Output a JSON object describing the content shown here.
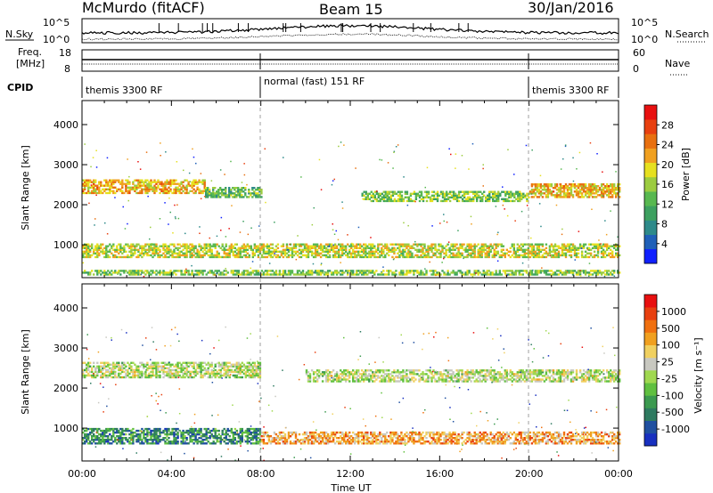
{
  "header": {
    "station": "McMurdo (fitACF)",
    "beam": "Beam 15",
    "date": "30/Jan/2016"
  },
  "labels": {
    "nsky": "N.Sky",
    "nsearch": "N.Search",
    "freq_line1": "Freq.",
    "freq_line2": "[MHz]",
    "nave": "Nave",
    "cpid": "CPID",
    "slant_range": "Slant Range [km]",
    "power": "Power [dB]",
    "velocity": "Velocity [m s⁻¹]",
    "time": "Time UT"
  },
  "noise_axis": {
    "top": "10^5",
    "bottom": "10^0"
  },
  "freq_axis": {
    "left_top": "18",
    "left_bottom": "8",
    "right_top": "60",
    "right_bottom": "0"
  },
  "cpid_segments": [
    {
      "label": "themis 3300 RF",
      "start": 0,
      "end": 8
    },
    {
      "label": "normal (fast) 151 RF",
      "start": 8,
      "end": 20
    },
    {
      "label": "themis 3300 RF",
      "start": 20,
      "end": 24
    }
  ],
  "chart_data": [
    {
      "type": "heatmap",
      "name": "power",
      "ylabel": "Slant Range [km]",
      "ylim": [
        180,
        4600
      ],
      "xlim": [
        0,
        24
      ],
      "yticks": [
        1000,
        2000,
        3000,
        4000
      ],
      "colorbar": {
        "label": "Power [dB]",
        "ticks": [
          "4",
          "8",
          "12",
          "16",
          "20",
          "24",
          "28"
        ],
        "colors": [
          "#1020ff",
          "#2060b8",
          "#2e8a8a",
          "#3da060",
          "#58b850",
          "#9ccc40",
          "#e6e020",
          "#f0a020",
          "#e87010",
          "#e84010",
          "#e81010"
        ]
      },
      "bands": [
        {
          "range_km": 2450,
          "width_km": 350,
          "t_start": 0,
          "t_end": 5.5,
          "level": 0.65
        },
        {
          "range_km": 2300,
          "width_km": 250,
          "t_start": 5.5,
          "t_end": 8,
          "level": 0.4
        },
        {
          "range_km": 2200,
          "width_km": 250,
          "t_start": 12.5,
          "t_end": 20,
          "level": 0.45
        },
        {
          "range_km": 2350,
          "width_km": 350,
          "t_start": 20,
          "t_end": 24,
          "level": 0.65
        },
        {
          "range_km": 850,
          "width_km": 350,
          "t_start": 0,
          "t_end": 24,
          "level": 0.55
        },
        {
          "range_km": 300,
          "width_km": 120,
          "t_start": 0,
          "t_end": 24,
          "level": 0.45
        }
      ]
    },
    {
      "type": "heatmap",
      "name": "velocity",
      "ylabel": "Slant Range [km]",
      "xlabel": "Time UT",
      "ylim": [
        180,
        4600
      ],
      "xlim": [
        0,
        24
      ],
      "yticks": [
        1000,
        2000,
        3000,
        4000
      ],
      "xticks": [
        "00:00",
        "04:00",
        "08:00",
        "12:00",
        "16:00",
        "20:00",
        "00:00"
      ],
      "colorbar": {
        "label": "Velocity [m s⁻¹]",
        "ticks": [
          "1000",
          "500",
          "100",
          "25",
          "-25",
          "-100",
          "-500",
          "-1000"
        ],
        "colors": [
          "#1830c0",
          "#2050a0",
          "#2e7a60",
          "#3c9a50",
          "#60c040",
          "#a0d850",
          "#c8c8c0",
          "#f0d060",
          "#f0a020",
          "#f07010",
          "#e84010",
          "#e81010"
        ]
      },
      "bands": [
        {
          "range_km": 2450,
          "width_km": 400,
          "t_start": 0,
          "t_end": 8,
          "level": 0.5
        },
        {
          "range_km": 2300,
          "width_km": 300,
          "t_start": 10,
          "t_end": 24,
          "level": 0.5
        },
        {
          "range_km": 800,
          "width_km": 400,
          "t_start": 0,
          "t_end": 8,
          "level": 0.25
        },
        {
          "range_km": 750,
          "width_km": 300,
          "t_start": 8,
          "t_end": 24,
          "level": 0.7
        }
      ]
    }
  ]
}
